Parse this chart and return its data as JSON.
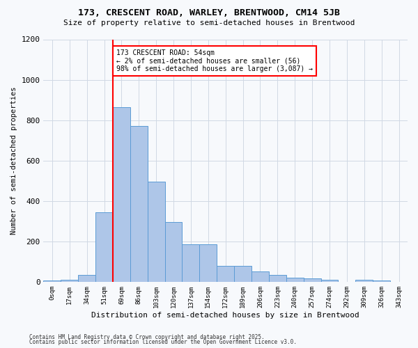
{
  "title": "173, CRESCENT ROAD, WARLEY, BRENTWOOD, CM14 5JB",
  "subtitle": "Size of property relative to semi-detached houses in Brentwood",
  "xlabel": "Distribution of semi-detached houses by size in Brentwood",
  "ylabel": "Number of semi-detached properties",
  "bar_labels": [
    "0sqm",
    "17sqm",
    "34sqm",
    "51sqm",
    "69sqm",
    "86sqm",
    "103sqm",
    "120sqm",
    "137sqm",
    "154sqm",
    "172sqm",
    "189sqm",
    "206sqm",
    "223sqm",
    "240sqm",
    "257sqm",
    "274sqm",
    "292sqm",
    "309sqm",
    "326sqm",
    "343sqm"
  ],
  "bar_values": [
    5,
    10,
    35,
    345,
    865,
    770,
    495,
    295,
    185,
    185,
    80,
    80,
    50,
    35,
    20,
    15,
    10,
    0,
    10,
    5,
    0
  ],
  "bar_color": "#aec6e8",
  "bar_edge_color": "#5b9bd5",
  "grid_color": "#d0d8e4",
  "property_line_x": 3.5,
  "annotation_text": "173 CRESCENT ROAD: 54sqm\n← 2% of semi-detached houses are smaller (56)\n98% of semi-detached houses are larger (3,087) →",
  "ylim": [
    0,
    1200
  ],
  "yticks": [
    0,
    200,
    400,
    600,
    800,
    1000,
    1200
  ],
  "footer_line1": "Contains HM Land Registry data © Crown copyright and database right 2025.",
  "footer_line2": "Contains public sector information licensed under the Open Government Licence v3.0.",
  "background_color": "#f7f9fc"
}
